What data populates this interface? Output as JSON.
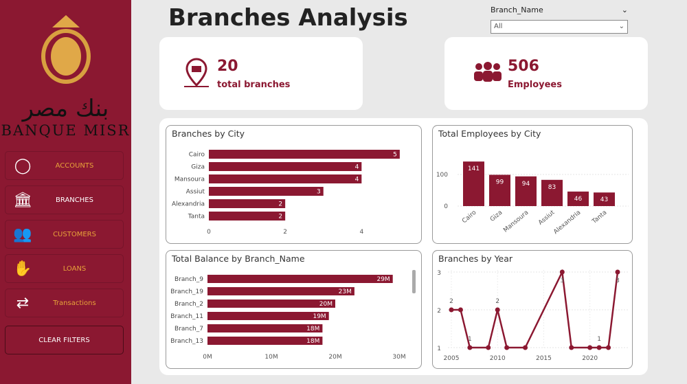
{
  "sidebar": {
    "logo": {
      "arabic": "بنك مصر",
      "english": "BANQUE MISR"
    },
    "items": [
      {
        "label": "ACCOUNTS",
        "icon": "user-circle-icon",
        "color": "#e8a33a"
      },
      {
        "label": "BRANCHES",
        "icon": "bank-building-icon",
        "color": "#ffffff"
      },
      {
        "label": "CUSTOMERS",
        "icon": "customers-group-icon",
        "color": "#e8a33a"
      },
      {
        "label": "LOANS",
        "icon": "loan-hand-icon",
        "color": "#e8a33a"
      },
      {
        "label": "Transactions",
        "icon": "transactions-exchange-icon",
        "color": "#e8a33a"
      }
    ],
    "clear_filters": "CLEAR FILTERS"
  },
  "header": {
    "title": "Branches Analysis"
  },
  "slicer": {
    "label": "Branch_Name",
    "value": "All"
  },
  "kpis": [
    {
      "value": "20",
      "label": "total branches",
      "icon": "branch-location-icon"
    },
    {
      "value": "506",
      "label": "Employees",
      "icon": "employees-group-icon"
    }
  ],
  "colors": {
    "accent": "#8b1831"
  },
  "chart_data": [
    {
      "type": "bar",
      "orientation": "horizontal",
      "title": "Branches by City",
      "categories": [
        "Cairo",
        "Giza",
        "Mansoura",
        "Assiut",
        "Alexandria",
        "Tanta"
      ],
      "values": [
        5,
        4,
        4,
        3,
        2,
        2
      ],
      "xticks": [
        "0",
        "2",
        "4"
      ],
      "xlim": [
        0,
        5.2
      ]
    },
    {
      "type": "bar",
      "title": "Total Employees by City",
      "categories": [
        "Cairo",
        "Giza",
        "Mansoura",
        "Assiut",
        "Alexandria",
        "Tanta"
      ],
      "values": [
        141,
        99,
        94,
        83,
        46,
        43
      ],
      "yticks": [
        "0",
        "100"
      ],
      "ylim": [
        0,
        150
      ]
    },
    {
      "type": "bar",
      "orientation": "horizontal",
      "title": "Total Balance by Branch_Name",
      "categories": [
        "Branch_9",
        "Branch_19",
        "Branch_2",
        "Branch_11",
        "Branch_7",
        "Branch_13"
      ],
      "values": [
        29,
        23,
        20,
        19,
        18,
        18
      ],
      "labels": [
        "29M",
        "23M",
        "20M",
        "19M",
        "18M",
        "18M"
      ],
      "xticks": [
        "0M",
        "10M",
        "20M",
        "30M"
      ],
      "xlim": [
        0,
        30
      ]
    },
    {
      "type": "line",
      "title": "Branches by Year",
      "x": [
        2005,
        2006,
        2007,
        2009,
        2010,
        2011,
        2013,
        2017,
        2018,
        2020,
        2021,
        2022,
        2023
      ],
      "y": [
        2,
        2,
        1,
        1,
        2,
        1,
        1,
        3,
        1,
        1,
        1,
        1,
        3
      ],
      "data_labels": {
        "2005": "2",
        "2007": "1",
        "2010": "2",
        "2017": "3",
        "2021": "1",
        "2023": "3"
      },
      "xticks": [
        "2005",
        "2010",
        "2015",
        "2020"
      ],
      "yticks": [
        "1",
        "2",
        "3"
      ],
      "xlim": [
        2004.8,
        2023.5
      ],
      "ylim": [
        1,
        3
      ]
    }
  ]
}
